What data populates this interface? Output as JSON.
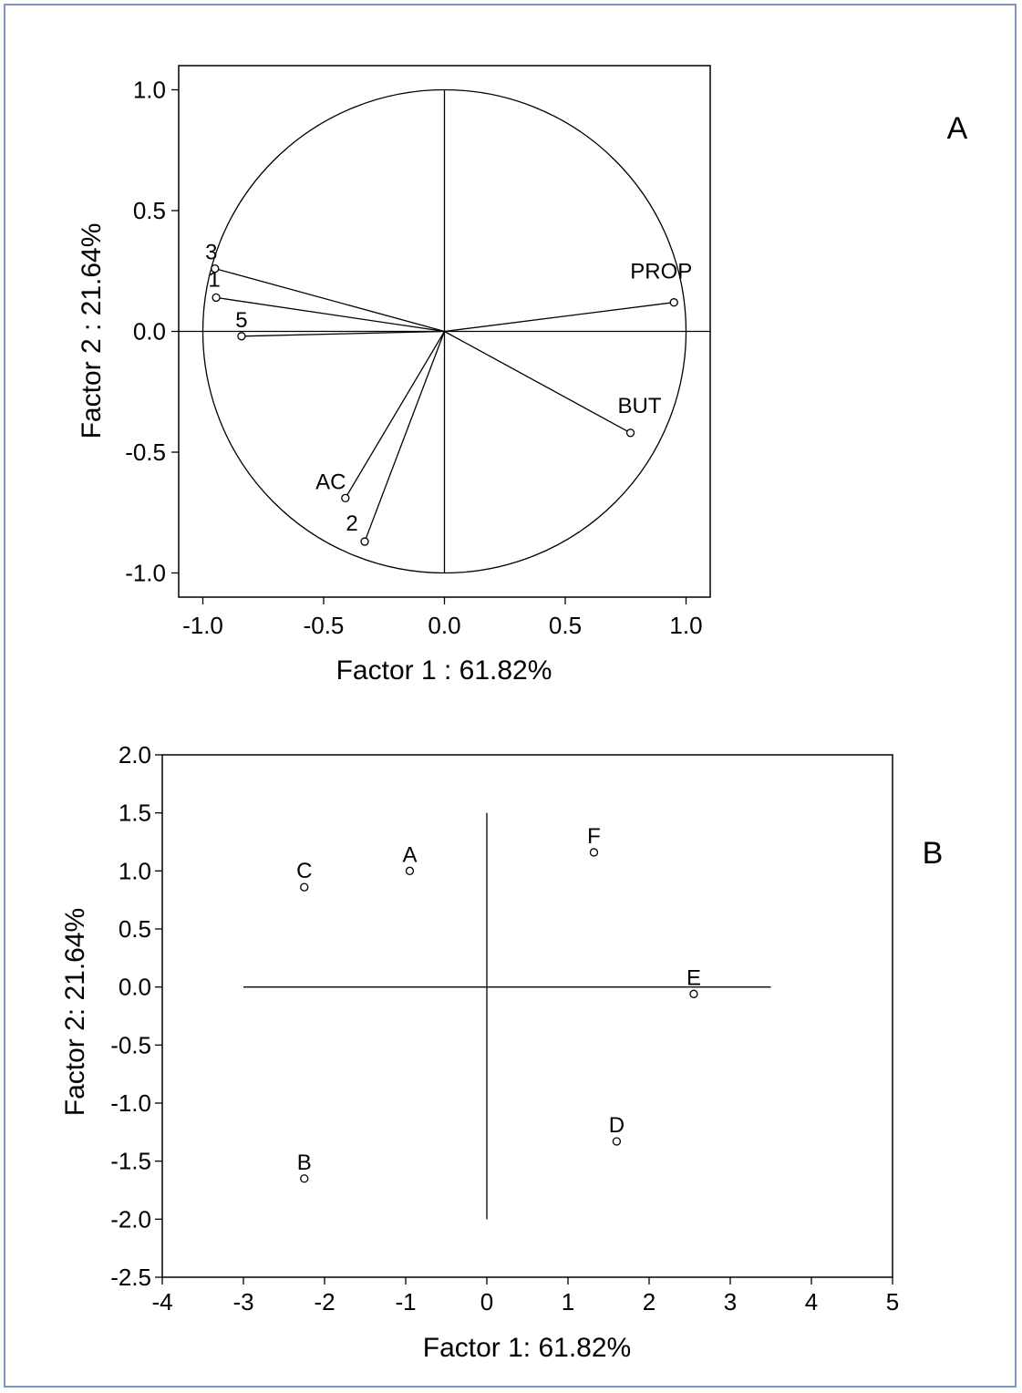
{
  "figure": {
    "border_color": "#7f97bf"
  },
  "chart_data": [
    {
      "type": "scatter",
      "panel_label": "A",
      "subtype": "pca-loadings-circle",
      "xlabel": "Factor 1 : 61.82%",
      "ylabel": "Factor 2 : 21.64%",
      "xlim": [
        -1.1,
        1.1
      ],
      "ylim": [
        -1.1,
        1.1
      ],
      "xticks": [
        "-1.0",
        "-0.5",
        "0.0",
        "0.5",
        "1.0"
      ],
      "yticks": [
        "1.0",
        "0.5",
        "0.0",
        "-0.5",
        "-1.0"
      ],
      "xtick_values": [
        -1.0,
        -0.5,
        0.0,
        0.5,
        1.0
      ],
      "ytick_values": [
        1.0,
        0.5,
        0.0,
        -0.5,
        -1.0
      ],
      "grid": false,
      "unit_circle": true,
      "vectors_from_origin": true,
      "points": [
        {
          "label": "3",
          "x": -0.95,
          "y": 0.26
        },
        {
          "label": "1",
          "x": -0.945,
          "y": 0.14
        },
        {
          "label": "5",
          "x": -0.84,
          "y": -0.02
        },
        {
          "label": "PROP",
          "x": 0.95,
          "y": 0.12
        },
        {
          "label": "BUT",
          "x": 0.77,
          "y": -0.42
        },
        {
          "label": "AC",
          "x": -0.41,
          "y": -0.69
        },
        {
          "label": "2",
          "x": -0.33,
          "y": -0.87
        }
      ]
    },
    {
      "type": "scatter",
      "panel_label": "B",
      "subtype": "pca-scores",
      "xlabel": "Factor 1: 61.82%",
      "ylabel": "Factor 2: 21.64%",
      "xlim": [
        -4,
        5
      ],
      "ylim": [
        -2.5,
        2.0
      ],
      "xticks": [
        "-4",
        "-3",
        "-2",
        "-1",
        "0",
        "1",
        "2",
        "3",
        "4",
        "5"
      ],
      "yticks": [
        "2.0",
        "1.5",
        "1.0",
        "0.5",
        "0.0",
        "-0.5",
        "-1.0",
        "-1.5",
        "-2.0",
        "-2.5"
      ],
      "xtick_values": [
        -4,
        -3,
        -2,
        -1,
        0,
        1,
        2,
        3,
        4,
        5
      ],
      "ytick_values": [
        2.0,
        1.5,
        1.0,
        0.5,
        0.0,
        -0.5,
        -1.0,
        -1.5,
        -2.0,
        -2.5
      ],
      "grid": false,
      "cross_lines": {
        "horizontal_x": [
          -3,
          3.5
        ],
        "vertical_y": [
          -2.0,
          1.5
        ]
      },
      "points": [
        {
          "label": "A",
          "x": -0.95,
          "y": 1.0
        },
        {
          "label": "B",
          "x": -2.25,
          "y": -1.65
        },
        {
          "label": "C",
          "x": -2.25,
          "y": 0.86
        },
        {
          "label": "D",
          "x": 1.6,
          "y": -1.33
        },
        {
          "label": "E",
          "x": 2.55,
          "y": -0.06
        },
        {
          "label": "F",
          "x": 1.32,
          "y": 1.16
        }
      ]
    }
  ]
}
